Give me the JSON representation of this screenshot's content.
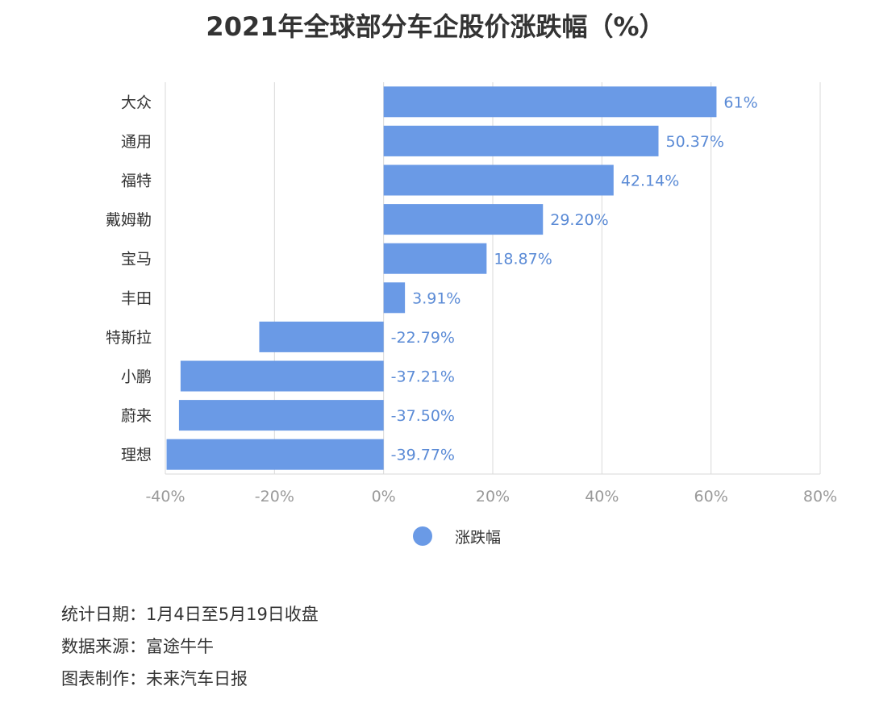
{
  "chart_data": {
    "type": "bar",
    "orientation": "horizontal",
    "title": "2021年全球部分车企股价涨跌幅（%）",
    "categories": [
      "大众",
      "通用",
      "福特",
      "戴姆勒",
      "宝马",
      "丰田",
      "特斯拉",
      "小鹏",
      "蔚来",
      "理想"
    ],
    "series": [
      {
        "name": "涨跌幅",
        "values": [
          61,
          50.37,
          42.14,
          29.2,
          18.87,
          3.91,
          -22.79,
          -37.21,
          -37.5,
          -39.77
        ],
        "labels": [
          "61%",
          "50.37%",
          "42.14%",
          "29.20%",
          "18.87%",
          "3.91%",
          "-22.79%",
          "-37.21%",
          "-37.50%",
          "-39.77%"
        ],
        "color": "#6a9ae6"
      }
    ],
    "xlim": [
      -40,
      80
    ],
    "xticks": [
      -40,
      -20,
      0,
      20,
      40,
      60,
      80
    ],
    "xtick_labels": [
      "-40%",
      "-20%",
      "0%",
      "20%",
      "40%",
      "60%",
      "80%"
    ],
    "grid": true,
    "legend_position": "bottom"
  },
  "colors": {
    "bar": "#6a9ae6",
    "value_label": "#5b8bd6",
    "grid": "#d9d9d9",
    "tick_label": "#999999",
    "category_label": "#333333"
  },
  "legend": {
    "label": "涨跌幅"
  },
  "notes": [
    "统计日期：1月4日至5月19日收盘",
    "数据来源：富途牛牛",
    "图表制作：未来汽车日报"
  ]
}
